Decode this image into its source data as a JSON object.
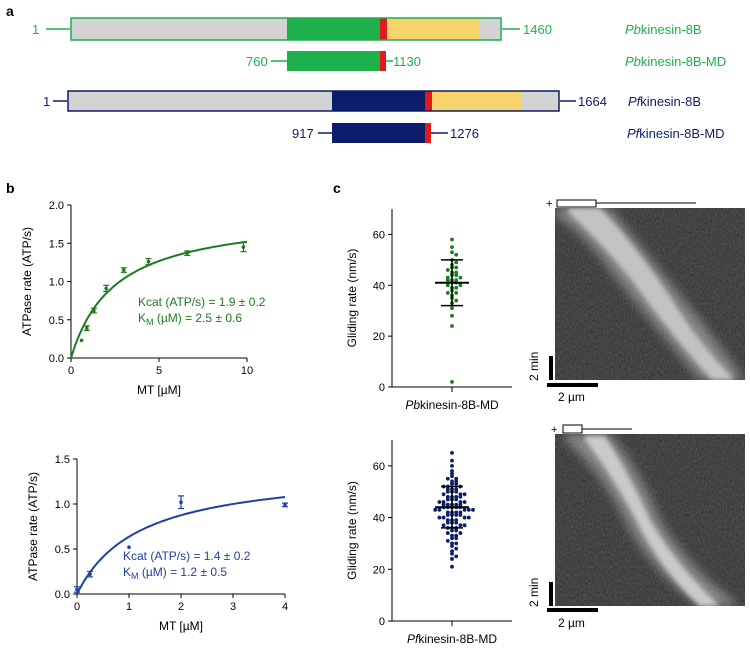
{
  "panel_labels": {
    "a": "a",
    "b": "b",
    "c": "c"
  },
  "domains": {
    "pb_full": {
      "start": "1",
      "end": "1460",
      "name_italic": "Pb",
      "name_rest": "kinesin-8B"
    },
    "pb_md": {
      "start": "760",
      "end": "1130",
      "name_italic": "Pb",
      "name_rest": "kinesin-8B-MD"
    },
    "pf_full": {
      "start": "1",
      "end": "1664",
      "name_italic": "Pf",
      "name_rest": "kinesin-8B"
    },
    "pf_md": {
      "start": "917",
      "end": "1276",
      "name_italic": "Pf",
      "name_rest": "kinesin-8B-MD"
    }
  },
  "colors": {
    "pb": "#1db04b",
    "pf": "#0b1d6b",
    "pb_curve": "#1f7a1f",
    "pf_curve": "#1f3fa6",
    "neck": "#e11b1b",
    "stalk": "#f7d36b",
    "grey": "#d3d3d3"
  },
  "kymograph": {
    "scale_time": "2 min",
    "scale_space": "2 µm",
    "plus": "+"
  },
  "chart_data": [
    {
      "type": "scatter",
      "id": "pb_atpase",
      "xlabel": "MT [µM]",
      "ylabel": "ATPase rate (ATP/s)",
      "xlim": [
        0,
        10
      ],
      "ylim": [
        0,
        2.0
      ],
      "xticks": [
        0,
        5,
        10
      ],
      "yticks": [
        0.0,
        0.5,
        1.0,
        1.5,
        2.0
      ],
      "points": [
        {
          "x": 0.6,
          "y": 0.23,
          "err": 0.0
        },
        {
          "x": 0.9,
          "y": 0.39,
          "err": 0.03
        },
        {
          "x": 1.3,
          "y": 0.62,
          "err": 0.03
        },
        {
          "x": 2.0,
          "y": 0.91,
          "err": 0.04
        },
        {
          "x": 3.0,
          "y": 1.15,
          "err": 0.03
        },
        {
          "x": 4.4,
          "y": 1.26,
          "err": 0.04
        },
        {
          "x": 6.6,
          "y": 1.37,
          "err": 0.03
        },
        {
          "x": 9.8,
          "y": 1.45,
          "err": 0.06
        }
      ],
      "fit": {
        "kcat": 1.9,
        "km": 2.5,
        "model": "michaelis-menten"
      },
      "annotation_line1": "Kcat (ATP/s) = 1.9 ± 0.2",
      "annotation_line2_k": "K",
      "annotation_line2_sub": "M",
      "annotation_line2_rest": " (µM) = 2.5 ± 0.6"
    },
    {
      "type": "scatter",
      "id": "pf_atpase",
      "xlabel": "MT [µM]",
      "ylabel": "ATPase rate (ATP/s)",
      "xlim": [
        0,
        4
      ],
      "ylim": [
        0,
        1.5
      ],
      "xticks": [
        0,
        1,
        2,
        3,
        4
      ],
      "yticks": [
        0.0,
        0.5,
        1.0,
        1.5
      ],
      "points": [
        {
          "x": 0.0,
          "y": 0.05,
          "err": 0.03
        },
        {
          "x": 0.25,
          "y": 0.22,
          "err": 0.03
        },
        {
          "x": 1.0,
          "y": 0.52,
          "err": 0.0
        },
        {
          "x": 2.0,
          "y": 1.02,
          "err": 0.07
        },
        {
          "x": 4.0,
          "y": 0.99,
          "err": 0.02
        }
      ],
      "fit": {
        "kcat": 1.4,
        "km": 1.2,
        "model": "michaelis-menten"
      },
      "annotation_line1": "Kcat (ATP/s) = 1.4 ± 0.2",
      "annotation_line2_k": "K",
      "annotation_line2_sub": "M",
      "annotation_line2_rest": " (µM) = 1.2 ± 0.5"
    },
    {
      "type": "scatter",
      "id": "pb_gliding",
      "ylabel": "Gliding rate  (nm/s)",
      "ylim": [
        0,
        70
      ],
      "yticks": [
        0,
        20,
        40,
        60
      ],
      "category_label_italic": "Pb",
      "category_label_rest": "kinesin-8B-MD",
      "mean": 41,
      "sd_upper": 50,
      "sd_lower": 32,
      "values": [
        58,
        55,
        53,
        52,
        50,
        49,
        48,
        47,
        47,
        46,
        45,
        45,
        44,
        44,
        43,
        43,
        42,
        42,
        42,
        41,
        41,
        40,
        40,
        39,
        39,
        38,
        37,
        37,
        36,
        35,
        34,
        33,
        31,
        28,
        24,
        2
      ]
    },
    {
      "type": "scatter",
      "id": "pf_gliding",
      "ylabel": "Gliding rate  (nm/s)",
      "ylim": [
        0,
        70
      ],
      "yticks": [
        0,
        20,
        40,
        60
      ],
      "category_label_italic": "Pf",
      "category_label_rest": "kinesin-8B-MD",
      "mean": 44,
      "sd_upper": 52,
      "sd_lower": 36,
      "values": [
        65,
        62,
        60,
        58,
        57,
        56,
        55,
        55,
        54,
        54,
        53,
        53,
        52,
        52,
        52,
        51,
        51,
        51,
        50,
        50,
        50,
        49,
        49,
        49,
        48,
        48,
        48,
        48,
        47,
        47,
        47,
        46,
        46,
        46,
        46,
        45,
        45,
        45,
        45,
        45,
        44,
        44,
        44,
        44,
        44,
        43,
        43,
        43,
        43,
        43,
        42,
        42,
        42,
        42,
        41,
        41,
        41,
        41,
        40,
        40,
        40,
        40,
        39,
        39,
        39,
        38,
        38,
        38,
        37,
        37,
        37,
        36,
        36,
        36,
        35,
        35,
        34,
        34,
        33,
        33,
        32,
        32,
        31,
        30,
        30,
        29,
        28,
        27,
        26,
        25,
        24,
        21
      ]
    }
  ]
}
